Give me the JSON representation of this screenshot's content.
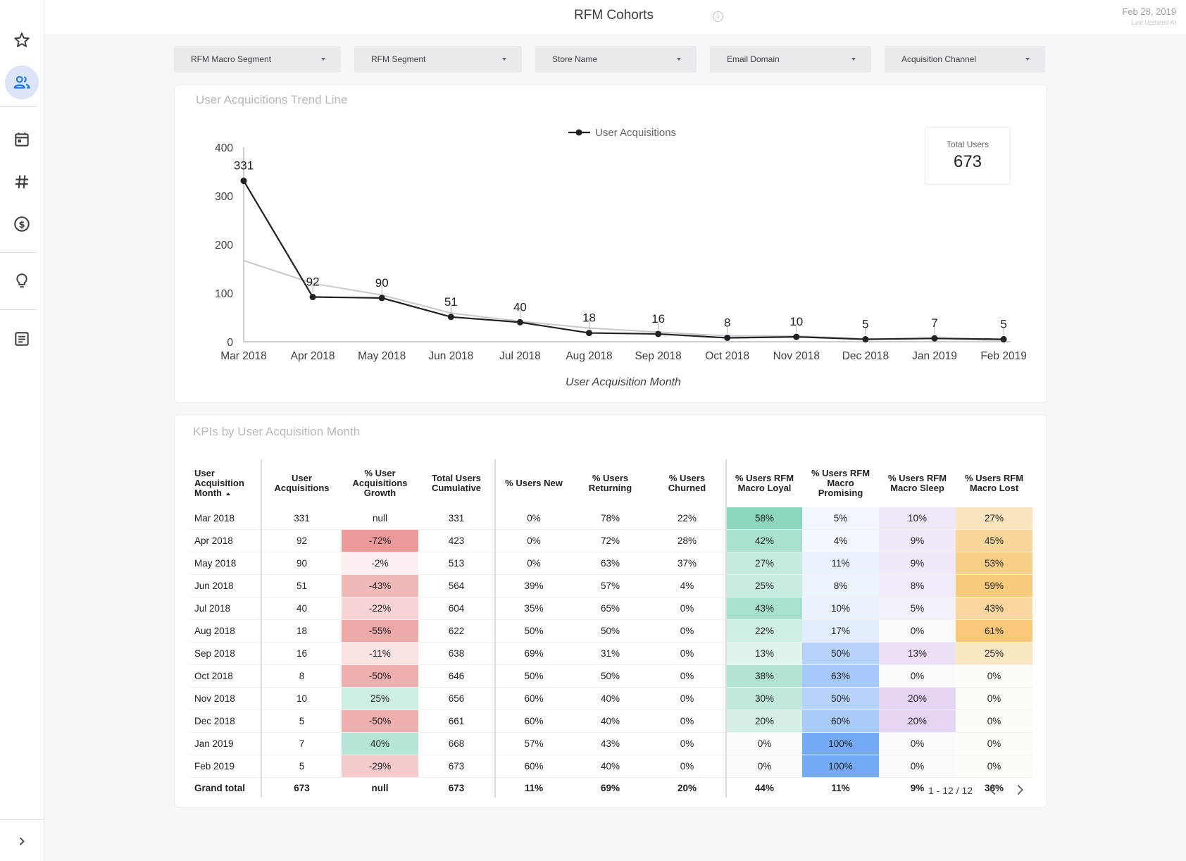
{
  "header": {
    "title": "RFM Cohorts",
    "info_icon": "info-icon",
    "updated_date": "Feb 28, 2019",
    "updated_label": "Last Updated At"
  },
  "sidebar": {
    "items": [
      {
        "icon": "star-icon",
        "active": false
      },
      {
        "icon": "users-icon",
        "active": true
      },
      {
        "icon": "calendar-icon",
        "active": false
      },
      {
        "icon": "hashtag-icon",
        "active": false
      },
      {
        "icon": "dollar-icon",
        "active": false
      },
      {
        "icon": "lightbulb-icon",
        "active": false
      },
      {
        "icon": "document-icon",
        "active": false
      }
    ],
    "expand_icon": "chevron-right-icon"
  },
  "filters": [
    {
      "label": "RFM Macro Segment"
    },
    {
      "label": "RFM Segment"
    },
    {
      "label": "Store Name"
    },
    {
      "label": "Email Domain"
    },
    {
      "label": "Acquisition Channel"
    }
  ],
  "trend_card": {
    "title": "User Acquicitions Trend Line",
    "total_label": "Total Users",
    "total_value": "673"
  },
  "chart_data": {
    "type": "line",
    "title": "User Acquicitions Trend Line",
    "xlabel": "User Acquisition Month",
    "ylabel": "",
    "categories": [
      "Mar 2018",
      "Apr 2018",
      "May 2018",
      "Jun 2018",
      "Jul 2018",
      "Aug 2018",
      "Sep 2018",
      "Oct 2018",
      "Nov 2018",
      "Dec 2018",
      "Jan 2019",
      "Feb 2019"
    ],
    "series": [
      {
        "name": "User Acquisitions",
        "values": [
          331,
          92,
          90,
          51,
          40,
          18,
          16,
          8,
          10,
          5,
          7,
          5
        ],
        "color": "#202124"
      },
      {
        "values": [
          167,
          120,
          96,
          59,
          42,
          28,
          20,
          12,
          12,
          6,
          6,
          3
        ],
        "color": "#c8c8c8"
      }
    ],
    "ylim": [
      0,
      400
    ],
    "yticks": [
      0,
      100,
      200,
      300,
      400
    ],
    "legend": "top-center",
    "grid": false
  },
  "kpi_card": {
    "title": "KPIs by User Acquisition Month",
    "columns": [
      "User Acquisition Month",
      "User Acquisitions",
      "% User Acquisitions Growth",
      "Total Users Cumulative",
      "% Users New",
      "% Users Returning",
      "% Users Churned",
      "% Users RFM Macro Loyal",
      "% Users RFM Macro Promising",
      "% Users RFM Macro Sleep",
      "% Users RFM Macro Lost"
    ],
    "rows": [
      [
        "Mar 2018",
        "331",
        "null",
        "331",
        "0%",
        "78%",
        "22%",
        "58%",
        "5%",
        "10%",
        "27%"
      ],
      [
        "Apr 2018",
        "92",
        "-72%",
        "423",
        "0%",
        "72%",
        "28%",
        "42%",
        "4%",
        "9%",
        "45%"
      ],
      [
        "May 2018",
        "90",
        "-2%",
        "513",
        "0%",
        "63%",
        "37%",
        "27%",
        "11%",
        "9%",
        "53%"
      ],
      [
        "Jun 2018",
        "51",
        "-43%",
        "564",
        "39%",
        "57%",
        "4%",
        "25%",
        "8%",
        "8%",
        "59%"
      ],
      [
        "Jul 2018",
        "40",
        "-22%",
        "604",
        "35%",
        "65%",
        "0%",
        "43%",
        "10%",
        "5%",
        "43%"
      ],
      [
        "Aug 2018",
        "18",
        "-55%",
        "622",
        "50%",
        "50%",
        "0%",
        "22%",
        "17%",
        "0%",
        "61%"
      ],
      [
        "Sep 2018",
        "16",
        "-11%",
        "638",
        "69%",
        "31%",
        "0%",
        "13%",
        "50%",
        "13%",
        "25%"
      ],
      [
        "Oct 2018",
        "8",
        "-50%",
        "646",
        "50%",
        "50%",
        "0%",
        "38%",
        "63%",
        "0%",
        "0%"
      ],
      [
        "Nov 2018",
        "10",
        "25%",
        "656",
        "60%",
        "40%",
        "0%",
        "30%",
        "50%",
        "20%",
        "0%"
      ],
      [
        "Dec 2018",
        "5",
        "-50%",
        "661",
        "60%",
        "40%",
        "0%",
        "20%",
        "60%",
        "20%",
        "0%"
      ],
      [
        "Jan 2019",
        "7",
        "40%",
        "668",
        "57%",
        "43%",
        "0%",
        "0%",
        "100%",
        "0%",
        "0%"
      ],
      [
        "Feb 2019",
        "5",
        "-29%",
        "673",
        "60%",
        "40%",
        "0%",
        "0%",
        "100%",
        "0%",
        "0%"
      ]
    ],
    "total_row": [
      "Grand total",
      "673",
      "null",
      "673",
      "11%",
      "69%",
      "20%",
      "44%",
      "11%",
      "9%",
      "36%"
    ],
    "pagination": "1 - 12 / 12"
  },
  "colors": {
    "growth_negative": "#e67c7c",
    "growth_positive": "#6fcfb6",
    "loyal": "#5cc5a5",
    "promising": "#4a8ff5",
    "sleep": "#a063d6",
    "lost": "#f5b64a"
  }
}
